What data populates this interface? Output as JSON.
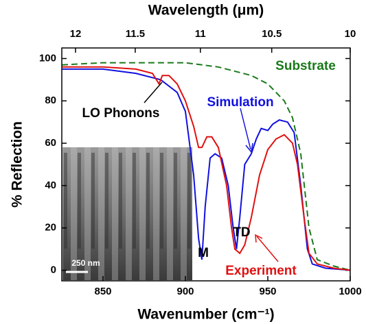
{
  "chart_data": {
    "type": "line",
    "xlabel": "Wavenumber (cm⁻¹)",
    "ylabel": "% Reflection",
    "x2label": "Wavelength (μm)",
    "xlim": [
      825,
      1000
    ],
    "ylim": [
      -5,
      105
    ],
    "xticks": [
      850,
      900,
      950,
      1000
    ],
    "yticks": [
      0,
      20,
      40,
      60,
      80,
      100
    ],
    "x2ticks": [
      12,
      11.5,
      11,
      10.5,
      10
    ],
    "series": [
      {
        "name": "Substrate",
        "color": "#1a7a1a",
        "dashed": true,
        "x": [
          825,
          850,
          880,
          900,
          920,
          940,
          950,
          960,
          965,
          970,
          975,
          980,
          990,
          1000
        ],
        "values": [
          97,
          98,
          98,
          98,
          96,
          92,
          88,
          80,
          72,
          55,
          20,
          5,
          2,
          0
        ]
      },
      {
        "name": "Simulation",
        "color": "#1010e0",
        "dashed": false,
        "x": [
          825,
          850,
          870,
          885,
          895,
          900,
          905,
          908,
          910,
          912,
          915,
          918,
          922,
          926,
          929,
          931,
          933,
          936,
          940,
          943,
          946,
          950,
          953,
          957,
          962,
          966,
          970,
          974,
          977,
          985,
          1000
        ],
        "values": [
          95,
          95,
          93,
          90,
          84,
          75,
          45,
          15,
          5,
          30,
          53,
          55,
          53,
          40,
          20,
          10,
          25,
          50,
          55,
          62,
          67,
          66,
          69,
          71,
          70,
          65,
          40,
          10,
          3,
          1,
          0
        ]
      },
      {
        "name": "Experiment",
        "color": "#e01010",
        "dashed": false,
        "x": [
          825,
          850,
          870,
          880,
          884,
          886,
          890,
          895,
          900,
          905,
          908,
          910,
          913,
          916,
          920,
          925,
          928,
          930,
          933,
          936,
          940,
          945,
          950,
          955,
          960,
          965,
          968,
          972,
          975,
          980,
          990,
          1000
        ],
        "values": [
          96,
          96,
          95,
          93,
          88,
          92,
          92,
          88,
          80,
          68,
          58,
          58,
          63,
          63,
          58,
          40,
          20,
          10,
          8,
          12,
          25,
          45,
          57,
          62,
          64,
          60,
          50,
          25,
          8,
          3,
          1,
          0
        ]
      }
    ],
    "annotations": [
      "Substrate",
      "Simulation",
      "LO Phonons",
      "M",
      "TD",
      "Experiment",
      "250 nm"
    ]
  }
}
